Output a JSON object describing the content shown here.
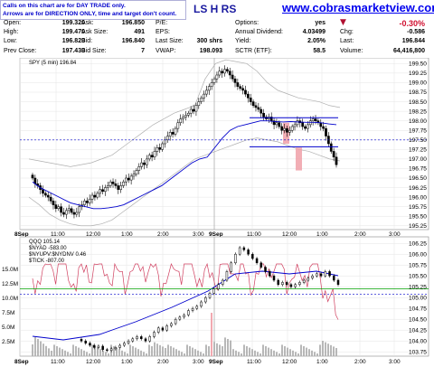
{
  "notice": {
    "line1": "Calls on this chart are for DAY TRADE only.",
    "line2": "Arrows are for DIRECTION ONLY, time and target don't count."
  },
  "header": {
    "symbol_title": "LS H RS",
    "website": "www.cobrasmarketview.com"
  },
  "quote": {
    "open_label": "Open:",
    "open": "199.320",
    "high_label": "High:",
    "high": "199.470",
    "low_label": "Low:",
    "low": "196.820",
    "prev_close_label": "Prev Close:",
    "prev_close": "197.430",
    "ask_label": "Ask:",
    "ask": "196.850",
    "ask_size_label": "Ask Size:",
    "ask_size": "491",
    "bid_label": "Bid:",
    "bid": "196.840",
    "bid_size_label": "Bid Size:",
    "bid_size": "7",
    "pe_label": "P/E:",
    "eps_label": "EPS:",
    "last_size_label": "Last Size:",
    "last_size": "300 shrs",
    "vwap_label": "VWAP:",
    "vwap": "198.093",
    "options_label": "Options:",
    "options": "yes",
    "annual_div_label": "Annual Dividend:",
    "annual_div": "4.03499",
    "yield_label": "Yield:",
    "yield": "2.05%",
    "sctr_label": "SCTR (ETF):",
    "sctr": "58.5",
    "pct_change": "-0.30%",
    "chg_label": "Chg:",
    "chg": "-0.586",
    "last_label": "Last:",
    "last": "196.844",
    "volume_label": "Volume:",
    "volume": "64,416,800"
  },
  "colors": {
    "up_candle": "#ffffff",
    "down_candle": "#000000",
    "vwap_line": "#0000cc",
    "bands": "#b0b0b0",
    "red_line": "#d04060",
    "marker": "#f0a0a8",
    "green_line": "#00a000",
    "dashed": "#0000cc"
  },
  "chart_data": [
    {
      "type": "candlestick",
      "title": "SPY (5 min) 196.84",
      "x_ticks": [
        "8Sep",
        "11:00",
        "12:00",
        "1:00",
        "2:00",
        "3:00",
        "9Sep",
        "11:00",
        "12:00",
        "1:00",
        "2:00",
        "3:00"
      ],
      "y_ticks": [
        199.5,
        199.25,
        199.0,
        198.75,
        198.5,
        198.25,
        198.0,
        197.75,
        197.5,
        197.25,
        197.0,
        196.75,
        196.5,
        196.25,
        196.0,
        195.75,
        195.5,
        195.25
      ],
      "ylim": [
        195.15,
        199.65
      ],
      "closes": [
        196.5,
        196.35,
        196.3,
        196.2,
        196.1,
        196.05,
        196.0,
        195.9,
        195.8,
        195.7,
        195.75,
        195.6,
        195.55,
        195.65,
        195.7,
        195.6,
        195.55,
        195.6,
        195.75,
        195.8,
        195.9,
        195.85,
        195.95,
        196.05,
        196.0,
        196.1,
        196.2,
        196.15,
        196.25,
        196.3,
        196.4,
        196.35,
        196.3,
        196.2,
        196.3,
        196.4,
        196.5,
        196.45,
        196.55,
        196.6,
        196.7,
        196.8,
        196.9,
        196.85,
        197.0,
        197.1,
        197.05,
        197.2,
        197.3,
        197.25,
        197.4,
        197.5,
        197.6,
        197.7,
        197.65,
        197.8,
        197.95,
        198.05,
        198.1,
        198.15,
        198.2,
        198.3,
        198.25,
        198.4,
        198.5,
        198.6,
        198.7,
        198.8,
        198.9,
        199.0,
        199.1,
        199.2,
        199.3,
        199.25,
        199.35,
        199.3,
        199.2,
        199.1,
        199.0,
        198.9,
        198.85,
        198.8,
        198.7,
        198.6,
        198.5,
        198.4,
        198.35,
        198.3,
        198.2,
        198.1,
        198.05,
        198.1,
        198.0,
        197.9,
        197.95,
        197.85,
        197.75,
        197.8,
        197.7,
        197.75,
        197.85,
        197.9,
        198.0,
        197.95,
        197.85,
        197.8,
        197.9,
        198.0,
        198.05,
        198.0,
        197.95,
        197.85,
        197.8,
        197.6,
        197.4,
        197.2,
        197.05,
        196.85
      ],
      "vwap": [
        196.4,
        196.25,
        196.15,
        196.05,
        195.95,
        195.85,
        195.8,
        195.75,
        195.7,
        195.7,
        195.72,
        195.75,
        195.8,
        195.9,
        196.0,
        196.1,
        196.2,
        196.3,
        196.45,
        196.6,
        196.75,
        196.9,
        197.0,
        197.05,
        197.3,
        197.55,
        197.75,
        197.85,
        197.9,
        197.95,
        198.0,
        198.0,
        197.98,
        197.97,
        197.98,
        197.97,
        197.96,
        197.96,
        197.95,
        197.92,
        197.9
      ],
      "upper_band": [
        197.0,
        196.95,
        196.9,
        196.85,
        196.8,
        196.85,
        196.9,
        197.0,
        197.1,
        197.3,
        197.5,
        197.7,
        197.9,
        198.05,
        198.2,
        198.3,
        198.4,
        199.1,
        199.5,
        199.6,
        199.55,
        199.5,
        199.3,
        199.0,
        198.8,
        198.7,
        198.6,
        198.55,
        198.5,
        198.4,
        198.35
      ],
      "lower_band": [
        196.0,
        195.8,
        195.55,
        195.4,
        195.3,
        195.25,
        195.25,
        195.3,
        195.4,
        195.6,
        195.8,
        196.0,
        196.2,
        196.4,
        196.6,
        196.8,
        197.0,
        197.1,
        197.2,
        197.3,
        197.4,
        197.5,
        197.55,
        197.5,
        197.45,
        197.35,
        197.25,
        197.2,
        197.1,
        197.0,
        196.95
      ],
      "resistance_line": 198.08,
      "support_line": 197.32,
      "dashed_line": 197.5,
      "annotation_box": [
        197.95,
        196.7
      ]
    },
    {
      "type": "line",
      "title": "QQQ 105.14",
      "legend": [
        "$NYAD -583.00",
        "$NYUPV:$NYDNV 0.46",
        "$TICK -807.00"
      ],
      "x_ticks": [
        "8Sep",
        "11:00",
        "12:00",
        "1:00",
        "2:00",
        "3:00",
        "9Sep",
        "11:00",
        "12:00",
        "1:00",
        "2:00",
        "3:00"
      ],
      "y_ticks": [
        106.25,
        106.0,
        105.75,
        105.5,
        105.25,
        105.0,
        104.75,
        104.5,
        104.25,
        104.0,
        103.75
      ],
      "ylim": [
        103.65,
        106.4
      ],
      "left_ticks": [
        "15.0M",
        "12.5M",
        "10.0M",
        "7.5M",
        "5.0M",
        "2.5M"
      ],
      "green_line": 105.2,
      "dashed_line": 105.08
    }
  ]
}
